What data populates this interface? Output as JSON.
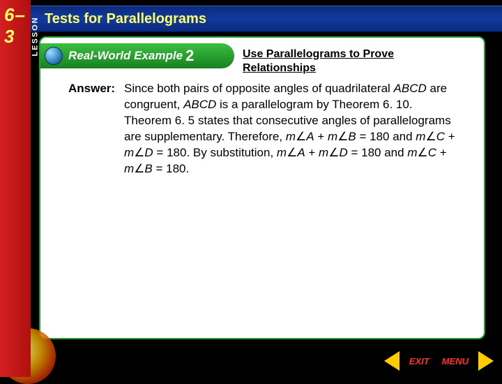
{
  "lesson": {
    "tab_label": "LESSON",
    "number": "6– 3"
  },
  "header": {
    "title": "Tests for Parallelograms"
  },
  "example": {
    "label": "Real-World Example",
    "number": "2",
    "subtitle": "Use Parallelograms to Prove Relationships"
  },
  "answer": {
    "label": "Answer:",
    "body_html": "Since both pairs of opposite angles of quadrilateral <i>ABCD</i> are congruent, <i>ABCD</i> is a parallelogram by Theorem 6. 10. Theorem 6. 5 states that consecutive angles of parallelograms are supplementary. Therefore, <i>m</i>∠<i>A</i> + <i>m</i>∠<i>B</i> = 180 and <i>m</i>∠<i>C</i> + <i>m</i>∠<i>D</i> = 180. By substitution, <i>m</i>∠<i>A</i> + <i>m</i>∠<i>D</i> = 180 and <i>m</i>∠<i>C</i> + <i>m</i>∠<i>B</i> = 180."
  },
  "nav": {
    "exit": "EXIT",
    "menu": "MENU"
  },
  "colors": {
    "red_tab": "#d42020",
    "header_blue": "#0a2a7a",
    "header_text": "#ffff66",
    "panel_border": "#2aa030",
    "example_green": "#188020",
    "arrow_yellow": "#ffcc00",
    "nav_red": "#ff3030"
  }
}
